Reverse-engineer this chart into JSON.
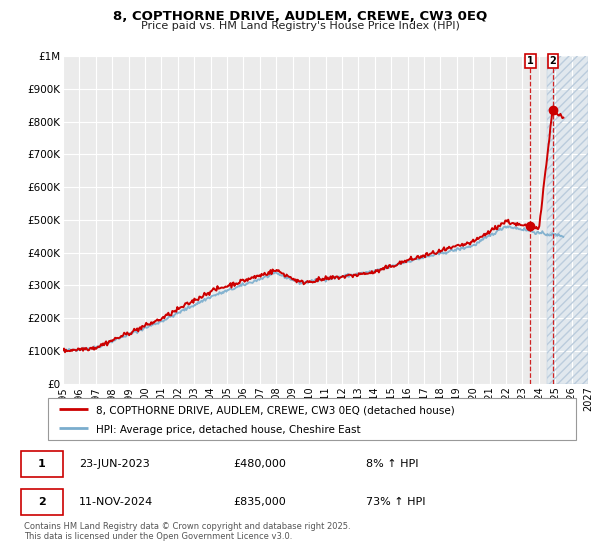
{
  "title": "8, COPTHORNE DRIVE, AUDLEM, CREWE, CW3 0EQ",
  "subtitle": "Price paid vs. HM Land Registry's House Price Index (HPI)",
  "legend_line1": "8, COPTHORNE DRIVE, AUDLEM, CREWE, CW3 0EQ (detached house)",
  "legend_line2": "HPI: Average price, detached house, Cheshire East",
  "annotation1_date": "23-JUN-2023",
  "annotation1_price": "£480,000",
  "annotation1_hpi": "8% ↑ HPI",
  "annotation2_date": "11-NOV-2024",
  "annotation2_price": "£835,000",
  "annotation2_hpi": "73% ↑ HPI",
  "footnote": "Contains HM Land Registry data © Crown copyright and database right 2025.\nThis data is licensed under the Open Government Licence v3.0.",
  "xlim": [
    1995,
    2027
  ],
  "ylim": [
    0,
    1000000
  ],
  "yticks": [
    0,
    100000,
    200000,
    300000,
    400000,
    500000,
    600000,
    700000,
    800000,
    900000,
    1000000
  ],
  "ytick_labels": [
    "£0",
    "£100K",
    "£200K",
    "£300K",
    "£400K",
    "£500K",
    "£600K",
    "£700K",
    "£800K",
    "£900K",
    "£1M"
  ],
  "red_color": "#cc0000",
  "blue_color": "#7aadcd",
  "bg_color": "#ebebeb",
  "grid_color": "#ffffff",
  "vline1_x": 2023.48,
  "vline2_x": 2024.87,
  "marker1_x": 2023.48,
  "marker1_y": 480000,
  "marker2_x": 2024.87,
  "marker2_y": 835000,
  "shaded_start": 2024.5,
  "shaded_end": 2027.0
}
